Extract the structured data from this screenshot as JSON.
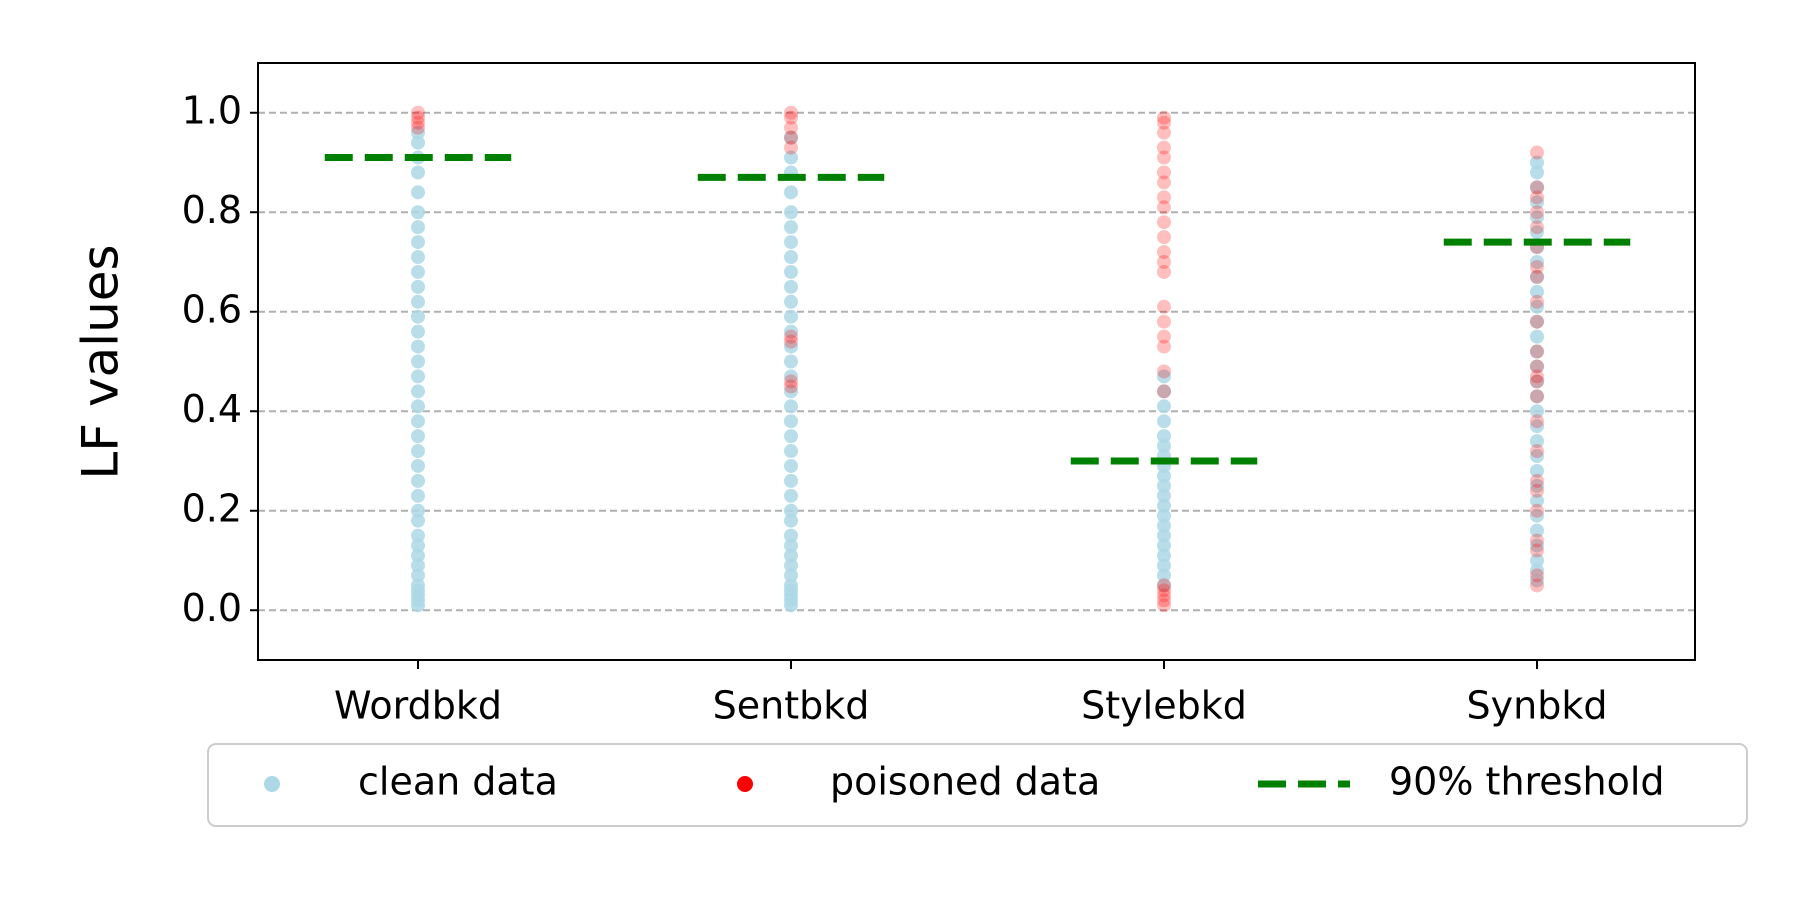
{
  "chart_data": {
    "type": "strip",
    "ylabel": "LF values",
    "categories": [
      "Wordbkd",
      "Sentbkd",
      "Stylebkd",
      "Synbkd"
    ],
    "series": [
      {
        "name": "clean data",
        "color": "#add8e6",
        "values": [
          [
            0.01,
            0.02,
            0.03,
            0.04,
            0.05,
            0.07,
            0.09,
            0.11,
            0.13,
            0.15,
            0.18,
            0.2,
            0.23,
            0.26,
            0.29,
            0.32,
            0.35,
            0.38,
            0.41,
            0.44,
            0.47,
            0.5,
            0.53,
            0.56,
            0.59,
            0.62,
            0.65,
            0.68,
            0.71,
            0.74,
            0.77,
            0.8,
            0.84,
            0.88,
            0.91,
            0.94,
            0.96
          ],
          [
            0.01,
            0.02,
            0.03,
            0.04,
            0.05,
            0.07,
            0.09,
            0.11,
            0.13,
            0.15,
            0.18,
            0.2,
            0.23,
            0.26,
            0.29,
            0.32,
            0.35,
            0.38,
            0.41,
            0.44,
            0.47,
            0.5,
            0.53,
            0.56,
            0.59,
            0.62,
            0.65,
            0.68,
            0.71,
            0.74,
            0.77,
            0.8,
            0.84,
            0.88,
            0.91,
            0.95
          ],
          [
            0.05,
            0.07,
            0.09,
            0.11,
            0.13,
            0.15,
            0.17,
            0.19,
            0.21,
            0.23,
            0.25,
            0.27,
            0.29,
            0.31,
            0.33,
            0.35,
            0.38,
            0.41,
            0.44,
            0.47
          ],
          [
            0.06,
            0.08,
            0.1,
            0.13,
            0.16,
            0.19,
            0.22,
            0.25,
            0.28,
            0.31,
            0.34,
            0.37,
            0.4,
            0.43,
            0.46,
            0.49,
            0.52,
            0.55,
            0.58,
            0.61,
            0.64,
            0.67,
            0.7,
            0.73,
            0.76,
            0.79,
            0.82,
            0.85,
            0.88,
            0.9
          ]
        ]
      },
      {
        "name": "poisoned data",
        "color": "#ff0000",
        "values": [
          [
            0.97,
            0.98,
            0.99,
            1.0
          ],
          [
            0.45,
            0.46,
            0.54,
            0.55,
            0.93,
            0.95,
            0.97,
            0.99,
            1.0
          ],
          [
            0.01,
            0.02,
            0.03,
            0.04,
            0.05,
            0.44,
            0.48,
            0.53,
            0.55,
            0.58,
            0.61,
            0.68,
            0.7,
            0.72,
            0.75,
            0.78,
            0.81,
            0.83,
            0.86,
            0.88,
            0.91,
            0.93,
            0.96,
            0.98,
            0.99
          ],
          [
            0.05,
            0.07,
            0.12,
            0.14,
            0.2,
            0.24,
            0.26,
            0.32,
            0.38,
            0.43,
            0.46,
            0.47,
            0.49,
            0.52,
            0.58,
            0.62,
            0.67,
            0.69,
            0.73,
            0.77,
            0.8,
            0.83,
            0.85,
            0.92
          ]
        ]
      },
      {
        "name": "90% threshold",
        "color": "#008000",
        "values": [
          0.91,
          0.87,
          0.3,
          0.74
        ]
      }
    ],
    "ylim": [
      -0.1,
      1.1
    ],
    "yticks": [
      {
        "value": 0,
        "label": "0.0"
      },
      {
        "value": 0.2,
        "label": "0.2"
      },
      {
        "value": 0.4,
        "label": "0.4"
      },
      {
        "value": 0.6,
        "label": "0.6"
      },
      {
        "value": 0.8,
        "label": "0.8"
      },
      {
        "value": 1,
        "label": "1.0"
      }
    ],
    "grid": true
  }
}
